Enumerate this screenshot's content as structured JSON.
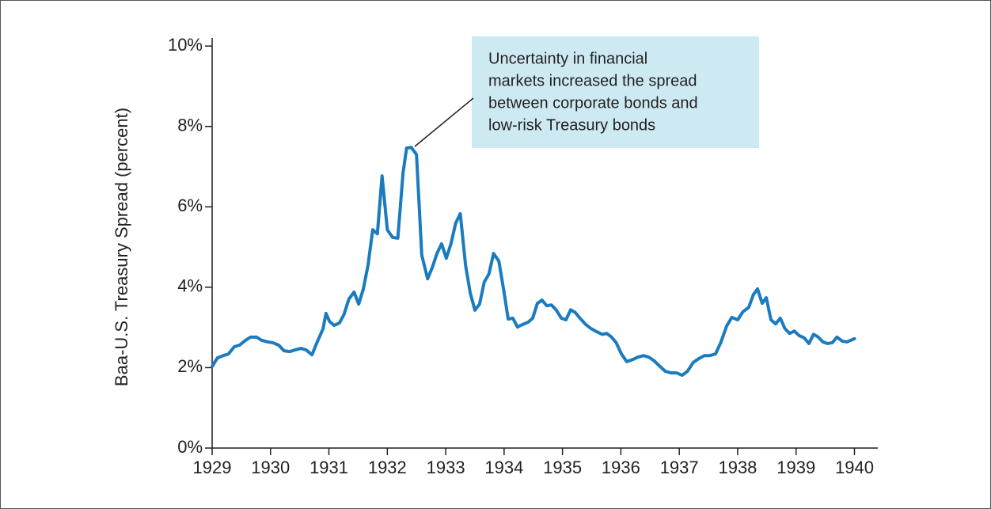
{
  "chart_data": {
    "type": "line",
    "y_label": "Baa-U.S. Treasury Spread (percent)",
    "annotation": [
      "Uncertainty in financial",
      "markets increased the spread",
      "between corporate bonds and",
      "low-risk Treasury bonds"
    ],
    "xlim": [
      1929,
      1940.4
    ],
    "xticks": [
      1929,
      1930,
      1931,
      1932,
      1933,
      1934,
      1935,
      1936,
      1937,
      1938,
      1939,
      1940
    ],
    "ylim": [
      0,
      10.2
    ],
    "yticks": [
      {
        "value": 0,
        "label": "0%"
      },
      {
        "value": 2,
        "label": "2%"
      },
      {
        "value": 4,
        "label": "4%"
      },
      {
        "value": 6,
        "label": "6%"
      },
      {
        "value": 8,
        "label": "8%"
      },
      {
        "value": 10,
        "label": "10%"
      }
    ],
    "grid": false,
    "x": [
      1929.0,
      1929.09,
      1929.19,
      1929.28,
      1929.38,
      1929.47,
      1929.57,
      1929.66,
      1929.76,
      1929.85,
      1929.95,
      1930.04,
      1930.14,
      1930.23,
      1930.33,
      1930.42,
      1930.52,
      1930.61,
      1930.71,
      1930.8,
      1930.9,
      1930.95,
      1931.01,
      1931.09,
      1931.18,
      1931.26,
      1931.34,
      1931.43,
      1931.51,
      1931.59,
      1931.67,
      1931.75,
      1931.83,
      1931.91,
      1932.0,
      1932.09,
      1932.18,
      1932.27,
      1932.33,
      1932.41,
      1932.5,
      1932.59,
      1932.69,
      1932.77,
      1932.85,
      1932.93,
      1933.01,
      1933.09,
      1933.17,
      1933.25,
      1933.34,
      1933.42,
      1933.5,
      1933.58,
      1933.66,
      1933.74,
      1933.82,
      1933.91,
      1933.99,
      1934.07,
      1934.15,
      1934.23,
      1934.31,
      1934.41,
      1934.49,
      1934.57,
      1934.65,
      1934.73,
      1934.81,
      1934.89,
      1934.98,
      1935.06,
      1935.14,
      1935.22,
      1935.3,
      1935.4,
      1935.49,
      1935.59,
      1935.68,
      1935.76,
      1935.84,
      1935.92,
      1936.01,
      1936.1,
      1936.2,
      1936.29,
      1936.39,
      1936.48,
      1936.57,
      1936.67,
      1936.76,
      1936.86,
      1936.95,
      1937.05,
      1937.14,
      1937.24,
      1937.33,
      1937.43,
      1937.52,
      1937.62,
      1937.71,
      1937.81,
      1937.9,
      1938.0,
      1938.09,
      1938.19,
      1938.27,
      1938.34,
      1938.42,
      1938.49,
      1938.57,
      1938.65,
      1938.73,
      1938.81,
      1938.89,
      1938.97,
      1939.05,
      1939.14,
      1939.22,
      1939.3,
      1939.38,
      1939.46,
      1939.54,
      1939.62,
      1939.7,
      1939.79,
      1939.87,
      1940.0
    ],
    "series": [
      {
        "name": "Baa-U.S. Treasury spread",
        "color": "#1a7bbf",
        "values": [
          2.03,
          2.24,
          2.3,
          2.34,
          2.52,
          2.56,
          2.68,
          2.76,
          2.76,
          2.68,
          2.64,
          2.62,
          2.56,
          2.42,
          2.4,
          2.44,
          2.48,
          2.44,
          2.32,
          2.64,
          2.97,
          3.35,
          3.15,
          3.05,
          3.11,
          3.33,
          3.7,
          3.88,
          3.58,
          3.96,
          4.55,
          5.43,
          5.33,
          6.77,
          5.43,
          5.24,
          5.22,
          6.85,
          7.46,
          7.48,
          7.3,
          4.8,
          4.21,
          4.49,
          4.84,
          5.08,
          4.72,
          5.08,
          5.59,
          5.83,
          4.55,
          3.86,
          3.43,
          3.58,
          4.13,
          4.33,
          4.84,
          4.65,
          3.96,
          3.21,
          3.23,
          3.01,
          3.07,
          3.13,
          3.23,
          3.6,
          3.68,
          3.54,
          3.56,
          3.44,
          3.23,
          3.19,
          3.44,
          3.37,
          3.23,
          3.07,
          2.97,
          2.89,
          2.83,
          2.85,
          2.76,
          2.62,
          2.34,
          2.15,
          2.2,
          2.26,
          2.3,
          2.26,
          2.17,
          2.03,
          1.91,
          1.87,
          1.87,
          1.81,
          1.91,
          2.13,
          2.22,
          2.3,
          2.3,
          2.34,
          2.62,
          3.03,
          3.25,
          3.19,
          3.39,
          3.5,
          3.82,
          3.96,
          3.6,
          3.74,
          3.19,
          3.09,
          3.23,
          2.97,
          2.85,
          2.91,
          2.8,
          2.74,
          2.6,
          2.83,
          2.76,
          2.64,
          2.6,
          2.62,
          2.76,
          2.66,
          2.64,
          2.72
        ]
      }
    ]
  }
}
